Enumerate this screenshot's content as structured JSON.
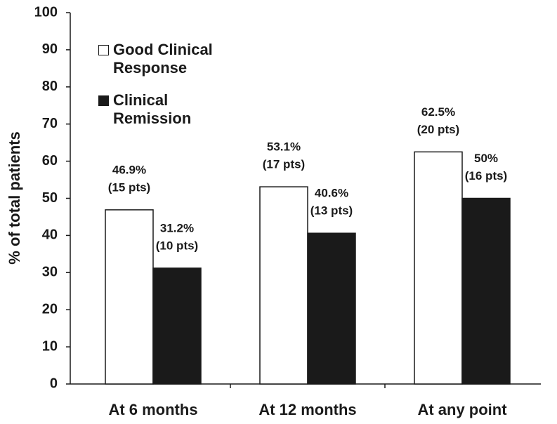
{
  "chart_data": {
    "type": "bar",
    "y_label": "% of total patients",
    "categories": [
      "At 6 months",
      "At 12 months",
      "At any point"
    ],
    "series": [
      {
        "name": "Good Clinical Response",
        "color": "#ffffff",
        "values": [
          46.9,
          53.1,
          62.5
        ],
        "value_labels": [
          "46.9%",
          "53.1%",
          "62.5%"
        ],
        "count_labels": [
          "(15 pts)",
          "(17 pts)",
          "(20 pts)"
        ]
      },
      {
        "name": "Clinical Remission",
        "color": "#1a1a1a",
        "values": [
          31.2,
          40.6,
          50
        ],
        "value_labels": [
          "31.2%",
          "40.6%",
          "50%"
        ],
        "count_labels": [
          "(10 pts)",
          "(13 pts)",
          "(16 pts)"
        ]
      }
    ],
    "ylim": [
      0,
      100
    ],
    "yticks": [
      0,
      10,
      20,
      30,
      40,
      50,
      60,
      70,
      80,
      90,
      100
    ],
    "legend": "upper left"
  }
}
